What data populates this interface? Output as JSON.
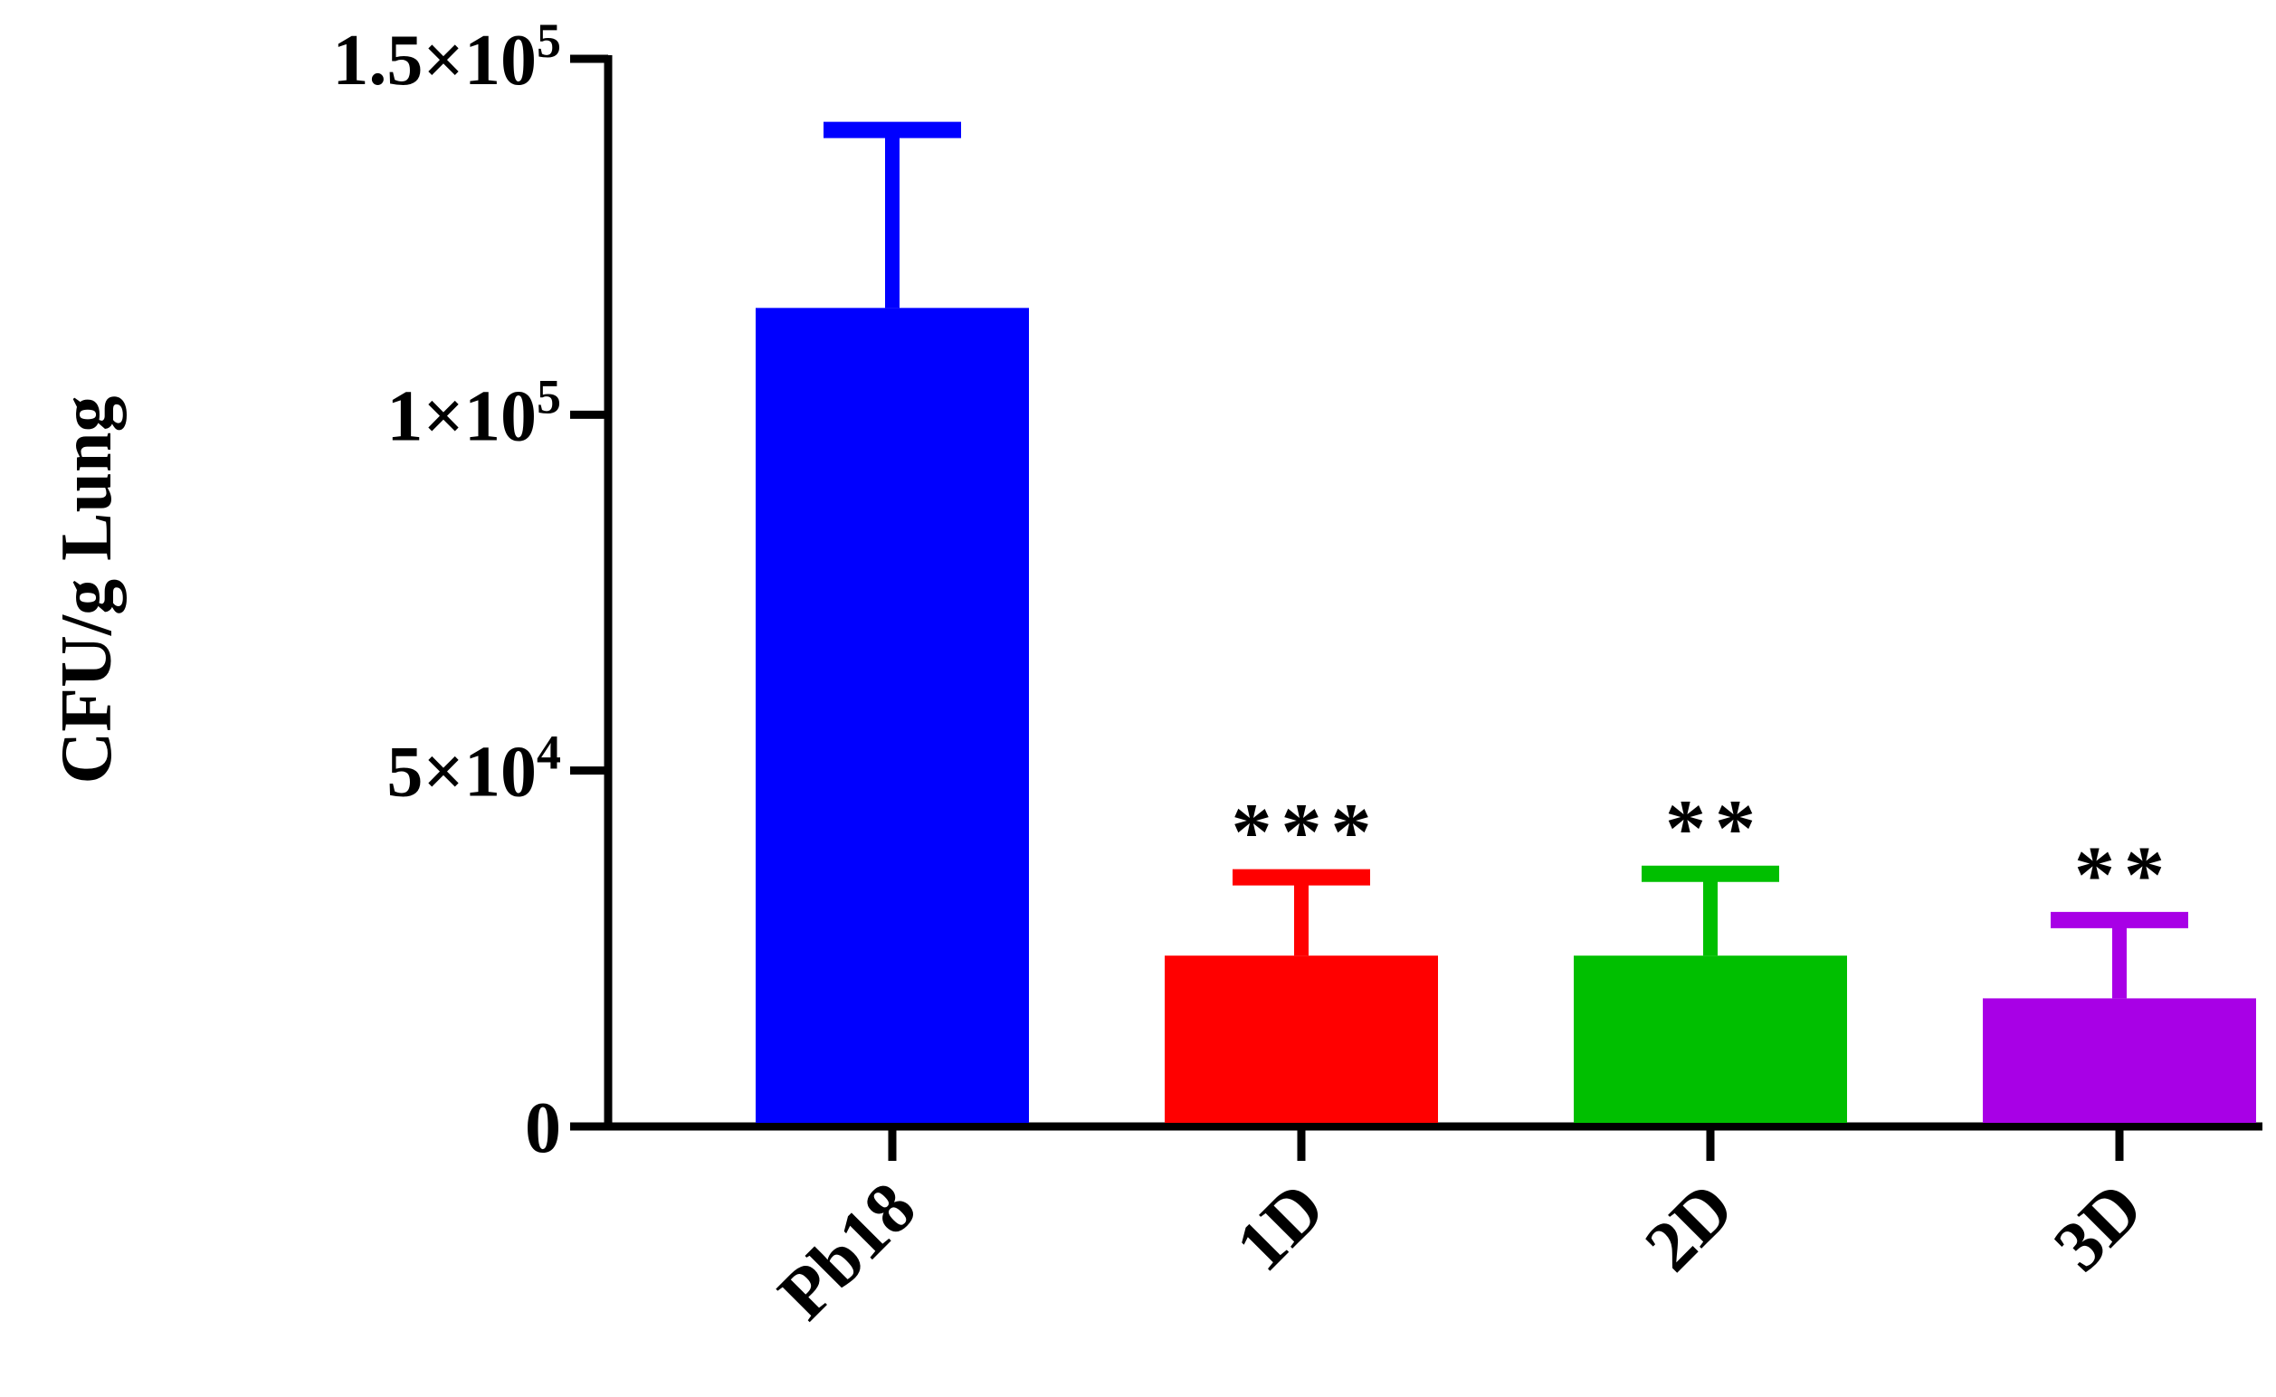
{
  "chart_data": {
    "type": "bar",
    "title": "",
    "xlabel": "",
    "ylabel": "CFU/g Lung",
    "ylim": [
      0,
      150000
    ],
    "y_ticks": [
      {
        "value": 0,
        "mantissa": "0",
        "exponent": ""
      },
      {
        "value": 50000,
        "mantissa": "5×10",
        "exponent": "4"
      },
      {
        "value": 100000,
        "mantissa": "1×10",
        "exponent": "5"
      },
      {
        "value": 150000,
        "mantissa": "1.5×10",
        "exponent": "5"
      }
    ],
    "categories": [
      "Pb18",
      "1D",
      "2D",
      "3D"
    ],
    "values": [
      115000,
      24000,
      24000,
      18000
    ],
    "error_upper": [
      140000,
      35000,
      35500,
      29000
    ],
    "significance": [
      "",
      "***",
      "**",
      "**"
    ],
    "colors": [
      "#0000ff",
      "#ff0000",
      "#00bf00",
      "#a800e6"
    ],
    "grid": false,
    "legend": "none"
  }
}
